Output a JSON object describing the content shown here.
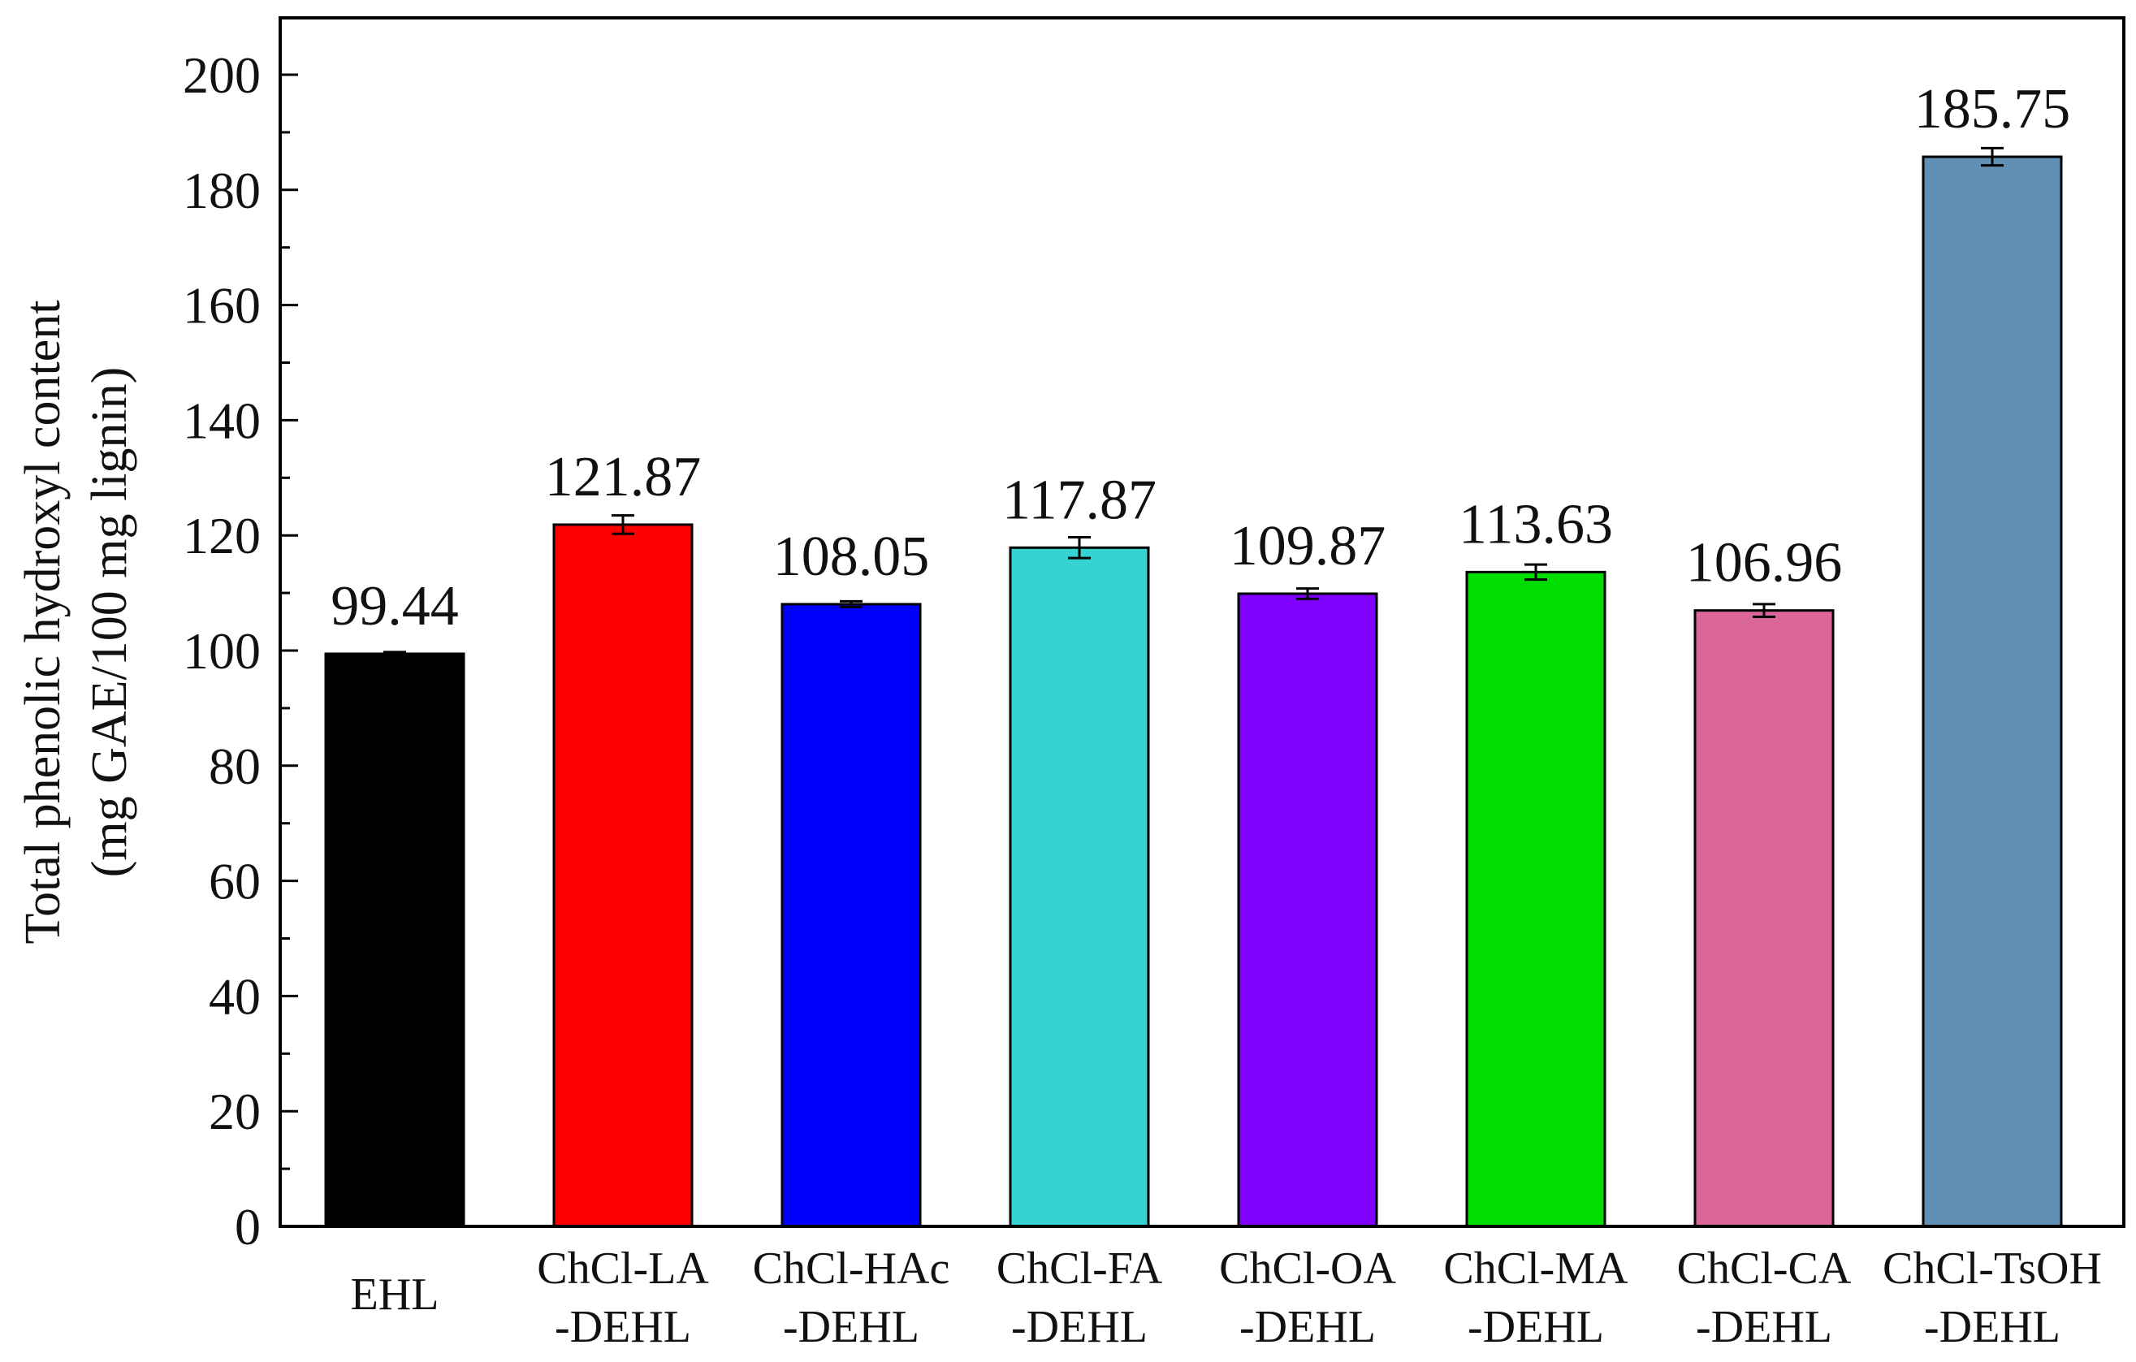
{
  "chart_data": {
    "type": "bar",
    "ylabel_line1": "Total phenolic hydroxyl content",
    "ylabel_line2": "(mg GAE/100 mg lignin)",
    "xlabel": "",
    "ylim": [
      0,
      210
    ],
    "yticks": [
      0,
      20,
      40,
      60,
      80,
      100,
      120,
      140,
      160,
      180,
      200
    ],
    "grid": false,
    "categories": [
      [
        "EHL"
      ],
      [
        "ChCl-LA",
        "-DEHL"
      ],
      [
        "ChCl-HAc",
        "-DEHL"
      ],
      [
        "ChCl-FA",
        "-DEHL"
      ],
      [
        "ChCl-OA",
        "-DEHL"
      ],
      [
        "ChCl-MA",
        "-DEHL"
      ],
      [
        "ChCl-CA",
        "-DEHL"
      ],
      [
        "ChCl-TsOH",
        "-DEHL"
      ]
    ],
    "values": [
      99.44,
      121.87,
      108.05,
      117.87,
      109.87,
      113.63,
      106.96,
      185.75
    ],
    "value_labels": [
      "99.44",
      "121.87",
      "108.05",
      "117.87",
      "109.87",
      "113.63",
      "106.96",
      "185.75"
    ],
    "errors": [
      0.3,
      1.6,
      0.5,
      1.8,
      0.9,
      1.3,
      1.1,
      1.5
    ],
    "colors": [
      "#000000",
      "#ff0000",
      "#0000ff",
      "#36d3d3",
      "#8000ff",
      "#00dd00",
      "#db6699",
      "#6190b4"
    ]
  }
}
